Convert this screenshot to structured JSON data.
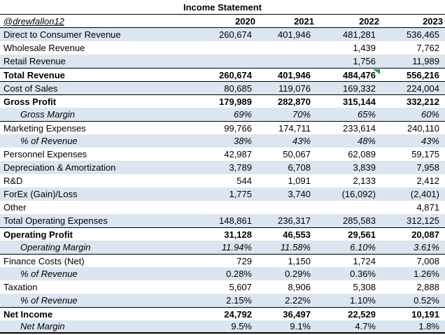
{
  "title": "Income Statement",
  "header": {
    "handle": "@drewfallon12",
    "years": [
      "2020",
      "2021",
      "2022",
      "2023"
    ]
  },
  "colors": {
    "shaded_row": "#dce6f1",
    "border": "#000000",
    "flag_green": "#1f9d3a",
    "text": "#000000"
  },
  "comment_flag": {
    "icon": "green-corner-flag",
    "row_index": 3,
    "col_index": 2
  },
  "rows": [
    {
      "label": "Direct to Consumer Revenue",
      "values": [
        "260,674",
        "401,946",
        "481,281",
        "536,465"
      ],
      "shaded": true
    },
    {
      "label": "Wholesale Revenue",
      "values": [
        "",
        "",
        "1,439",
        "7,762"
      ]
    },
    {
      "label": "Retail Revenue",
      "values": [
        "",
        "",
        "1,756",
        "11,989"
      ],
      "shaded": true
    },
    {
      "label": "Total Revenue",
      "values": [
        "260,674",
        "401,946",
        "484,476",
        "556,216"
      ],
      "bold": true,
      "border_top": true
    },
    {
      "label": "Cost of Sales",
      "values": [
        "80,685",
        "119,076",
        "169,332",
        "224,004"
      ],
      "shaded": true,
      "border_top": true
    },
    {
      "label": "Gross Profit",
      "values": [
        "179,989",
        "282,870",
        "315,144",
        "332,212"
      ],
      "bold": true,
      "border_top": true
    },
    {
      "label": "Gross Margin",
      "values": [
        "69%",
        "70%",
        "65%",
        "60%"
      ],
      "shaded": true,
      "italic_label": true,
      "italic_values": true,
      "indent": true
    },
    {
      "label": "Marketing Expenses",
      "values": [
        "99,766",
        "174,711",
        "233,614",
        "240,110"
      ],
      "border_top": true
    },
    {
      "label": "% of Revenue",
      "values": [
        "38%",
        "43%",
        "48%",
        "43%"
      ],
      "shaded": true,
      "italic_label": true,
      "italic_values": true,
      "indent": true
    },
    {
      "label": "Personnel Expenses",
      "values": [
        "42,987",
        "50,067",
        "62,089",
        "59,175"
      ]
    },
    {
      "label": "Depreciation & Amortization",
      "values": [
        "3,789",
        "6,708",
        "3,839",
        "7,958"
      ],
      "shaded": true
    },
    {
      "label": "R&D",
      "values": [
        "544",
        "1,091",
        "2,133",
        "2,412"
      ]
    },
    {
      "label": "ForEx (Gain)/Loss",
      "values": [
        "1,775",
        "3,740",
        "(16,092)",
        "(2,401)"
      ],
      "shaded": true
    },
    {
      "label": "Other",
      "values": [
        "",
        "",
        "",
        "4,871"
      ]
    },
    {
      "label": "Total Operating Expenses",
      "values": [
        "148,861",
        "236,317",
        "285,583",
        "312,125"
      ],
      "shaded": true
    },
    {
      "label": "Operating Profit",
      "values": [
        "31,128",
        "46,553",
        "29,561",
        "20,087"
      ],
      "bold": true,
      "border_top": true
    },
    {
      "label": "Operating Margin",
      "values": [
        "11.94%",
        "11.58%",
        "6.10%",
        "3.61%"
      ],
      "shaded": true,
      "italic_label": true,
      "italic_values": true,
      "indent": true
    },
    {
      "label": "Finance Costs (Net)",
      "values": [
        "729",
        "1,150",
        "1,724",
        "7,008"
      ],
      "border_top": true
    },
    {
      "label": "% of Revenue",
      "values": [
        "0.28%",
        "0.29%",
        "0.36%",
        "1.26%"
      ],
      "shaded": true,
      "italic_label": true,
      "indent": true
    },
    {
      "label": "Taxation",
      "values": [
        "5,607",
        "8,906",
        "5,308",
        "2,888"
      ]
    },
    {
      "label": "% of Revenue",
      "values": [
        "2.15%",
        "2.22%",
        "1.10%",
        "0.52%"
      ],
      "shaded": true,
      "italic_label": true,
      "indent": true
    },
    {
      "label": "Net Income",
      "values": [
        "24,792",
        "36,497",
        "22,529",
        "10,191"
      ],
      "bold": true,
      "border_top": true
    },
    {
      "label": "Net Margin",
      "values": [
        "9.5%",
        "9.1%",
        "4.7%",
        "1.8%"
      ],
      "shaded": true,
      "italic_label": true,
      "indent": true,
      "border_bottom_thick": true
    }
  ]
}
